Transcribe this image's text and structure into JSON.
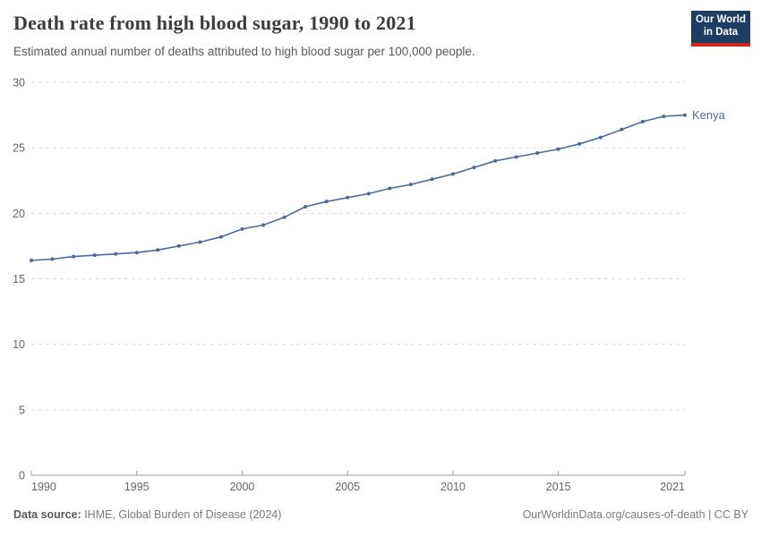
{
  "header": {
    "title": "Death rate from high blood sugar, 1990 to 2021",
    "subtitle": "Estimated annual number of deaths attributed to high blood sugar per 100,000 people.",
    "logo": {
      "line1": "Our World",
      "line2": "in Data"
    }
  },
  "chart_data": {
    "type": "line",
    "title": "Death rate from high blood sugar, 1990 to 2021",
    "subtitle": "Estimated annual number of deaths attributed to high blood sugar per 100,000 people.",
    "xlabel": "",
    "ylabel": "",
    "xlim": [
      1990,
      2021
    ],
    "ylim": [
      0,
      30
    ],
    "x_ticks": [
      1990,
      1995,
      2000,
      2005,
      2010,
      2015,
      2021
    ],
    "y_ticks": [
      0,
      5,
      10,
      15,
      20,
      25,
      30
    ],
    "grid": "horizontal-dashed",
    "legend_position": "end-of-line",
    "x": [
      1990,
      1991,
      1992,
      1993,
      1994,
      1995,
      1996,
      1997,
      1998,
      1999,
      2000,
      2001,
      2002,
      2003,
      2004,
      2005,
      2006,
      2007,
      2008,
      2009,
      2010,
      2011,
      2012,
      2013,
      2014,
      2015,
      2016,
      2017,
      2018,
      2019,
      2020,
      2021
    ],
    "series": [
      {
        "name": "Kenya",
        "color": "#4c6a9c",
        "values": [
          16.4,
          16.5,
          16.7,
          16.8,
          16.9,
          17.0,
          17.2,
          17.5,
          17.8,
          18.2,
          18.8,
          19.1,
          19.7,
          20.5,
          20.9,
          21.2,
          21.5,
          21.9,
          22.2,
          22.6,
          23.0,
          23.5,
          24.0,
          24.3,
          24.6,
          24.9,
          25.3,
          25.8,
          26.4,
          27.0,
          27.4,
          27.5
        ]
      }
    ]
  },
  "colors": {
    "line": "#4c6a9c",
    "grid": "#dcdcdc",
    "axis": "#9a9a9a",
    "tick_label": "#666666",
    "logo_bg": "#1d3d63",
    "logo_accent": "#cf241c"
  },
  "footer": {
    "source_label": "Data source:",
    "source_text": " IHME, Global Burden of Disease (2024)",
    "link_text": "OurWorldinData.org/causes-of-death | CC BY"
  }
}
